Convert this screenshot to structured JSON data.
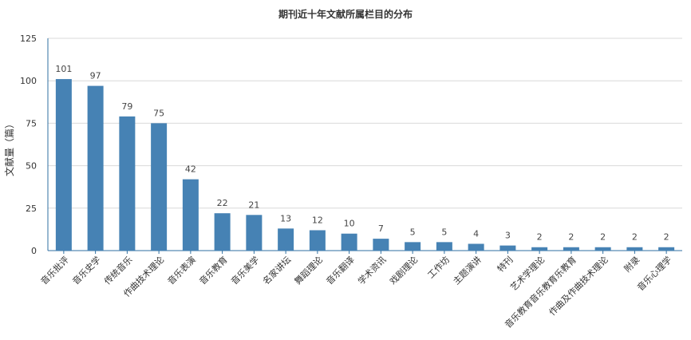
{
  "chart_data": {
    "type": "bar",
    "title": "期刊近十年文献所属栏目的分布",
    "xlabel": "",
    "ylabel": "文献量（篇）",
    "ylim": [
      0,
      125
    ],
    "yticks": [
      0,
      25,
      50,
      75,
      100,
      125
    ],
    "grid": true,
    "legend": "none",
    "bar_color": "#4682b4",
    "categories": [
      "音乐批评",
      "音乐史学",
      "传统音乐",
      "作曲技术理论",
      "音乐表演",
      "音乐教育",
      "音乐美学",
      "名家讲坛",
      "舞蹈理论",
      "音乐翻译",
      "学术资讯",
      "戏剧理论",
      "工作坊",
      "主题演讲",
      "特刊",
      "艺术学理论",
      "音乐教育音乐教育乐教育",
      "作曲及作曲技术理论",
      "附录",
      "音乐心理学"
    ],
    "values": [
      101,
      97,
      79,
      75,
      42,
      22,
      21,
      13,
      12,
      10,
      7,
      5,
      5,
      4,
      3,
      2,
      2,
      2,
      2,
      2
    ]
  }
}
